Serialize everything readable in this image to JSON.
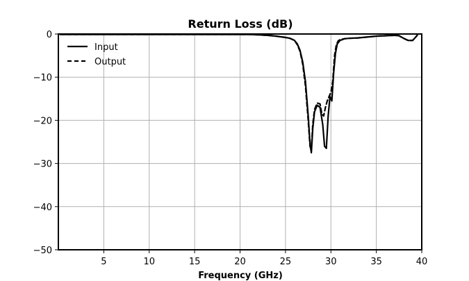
{
  "chart_data": {
    "type": "line",
    "title": "Return Loss (dB)",
    "xlabel": "Frequency (GHz)",
    "ylabel": "",
    "xlim": [
      0,
      40
    ],
    "ylim": [
      -50,
      0
    ],
    "x_ticks": [
      5,
      10,
      15,
      20,
      25,
      30,
      35,
      40
    ],
    "x_tick_labels": [
      "5",
      "10",
      "15",
      "20",
      "25",
      "30",
      "35",
      "40"
    ],
    "y_ticks": [
      0,
      -10,
      -20,
      -30,
      -40,
      -50
    ],
    "y_tick_labels": [
      "0",
      "−10",
      "−20",
      "−30",
      "−40",
      "−50"
    ],
    "grid": true,
    "legend": "top-left",
    "series": [
      {
        "name": "Input",
        "style": "solid",
        "color": "#000000",
        "x": [
          0.2,
          5,
          10,
          15,
          20,
          21,
          22,
          23,
          24,
          25,
          25.5,
          26,
          26.3,
          26.6,
          26.9,
          27.2,
          27.5,
          27.7,
          27.85,
          28.0,
          28.2,
          28.5,
          28.8,
          29.1,
          29.3,
          29.5,
          29.7,
          29.9,
          30.1,
          30.3,
          30.5,
          30.7,
          31.0,
          31.5,
          32,
          33,
          34,
          35,
          36,
          37,
          37.5,
          38,
          38.5,
          39,
          39.3,
          39.5
        ],
        "y": [
          -0.1,
          -0.1,
          -0.1,
          -0.1,
          -0.1,
          -0.1,
          -0.2,
          -0.3,
          -0.5,
          -0.8,
          -1.0,
          -1.5,
          -2.3,
          -3.8,
          -6.5,
          -11,
          -19,
          -25.5,
          -27.5,
          -22,
          -18,
          -16.5,
          -17,
          -21,
          -26,
          -26.5,
          -19,
          -14.5,
          -15.5,
          -9,
          -4.5,
          -2.3,
          -1.5,
          -1.1,
          -1.0,
          -0.9,
          -0.7,
          -0.5,
          -0.4,
          -0.3,
          -0.4,
          -1.0,
          -1.5,
          -1.5,
          -0.8,
          -0.3
        ]
      },
      {
        "name": "Output",
        "style": "dashed",
        "color": "#000000",
        "x": [
          0.2,
          5,
          10,
          15,
          20,
          21,
          22,
          23,
          24,
          25,
          25.5,
          26,
          26.3,
          26.6,
          26.9,
          27.2,
          27.5,
          27.7,
          27.85,
          28.0,
          28.2,
          28.5,
          28.8,
          29.0,
          29.2,
          29.4,
          29.6,
          29.8,
          30.0,
          30.2,
          30.4,
          30.6,
          30.8,
          31.0,
          31.5,
          32,
          33,
          34,
          35,
          36,
          37,
          37.5,
          38,
          38.5,
          39,
          39.3,
          39.5
        ],
        "y": [
          -0.1,
          -0.1,
          -0.1,
          -0.1,
          -0.1,
          -0.1,
          -0.2,
          -0.3,
          -0.5,
          -0.8,
          -1.0,
          -1.5,
          -2.5,
          -4.0,
          -7.0,
          -12,
          -20,
          -26,
          -27,
          -21,
          -17.5,
          -16,
          -16.2,
          -18.5,
          -19,
          -17,
          -15.5,
          -14.5,
          -13.5,
          -11,
          -5,
          -2.5,
          -1.6,
          -1.3,
          -1.1,
          -1.0,
          -0.9,
          -0.7,
          -0.5,
          -0.4,
          -0.3,
          -0.4,
          -1.0,
          -1.5,
          -1.5,
          -0.8,
          -0.3
        ]
      }
    ]
  }
}
